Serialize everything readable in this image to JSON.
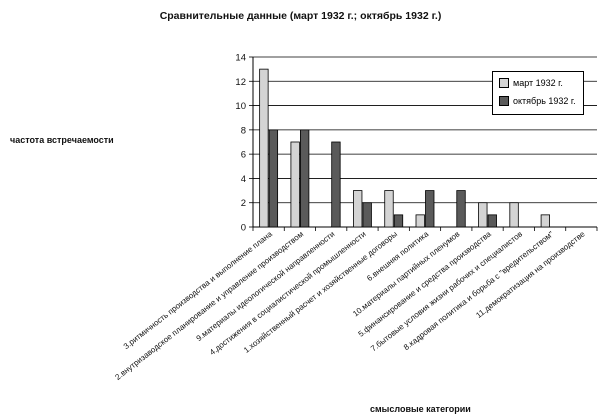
{
  "chart_data": {
    "type": "bar",
    "title": "Сравнительные данные (март 1932 г.; октябрь 1932 г.)",
    "ylabel": "частота встречаемости",
    "xlabel": "смысловые категории",
    "ylim": [
      0,
      14
    ],
    "yticks": [
      0,
      2,
      4,
      6,
      8,
      10,
      12,
      14
    ],
    "grid": true,
    "legend_position": "top-right",
    "categories": [
      "3.ритмичность производства и выполнение плана",
      "2.внутризаводское планирование и управление производством",
      "9.материалы идеологической направленности",
      "4.достижения в социалистической промышленности",
      "1.хозяйственный расчет и хозяйственные договоры",
      "6.внешняя политика",
      "10.материалы партийных пленумов",
      "5.финансирование и средства производства",
      "7.бытовые условия жизни рабочих и специалистов",
      "8.кадровая политика и борьба с \"вредительством\"",
      "11.демократизация на производстве"
    ],
    "series": [
      {
        "name": "март 1932 г.",
        "color": "#d4d4d4",
        "values": [
          13,
          7,
          0,
          3,
          3,
          1,
          0,
          2,
          2,
          1,
          0
        ]
      },
      {
        "name": "октябрь 1932 г.",
        "color": "#5a5a5a",
        "values": [
          8,
          8,
          7,
          2,
          1,
          3,
          3,
          1,
          0,
          0,
          0
        ]
      }
    ]
  }
}
